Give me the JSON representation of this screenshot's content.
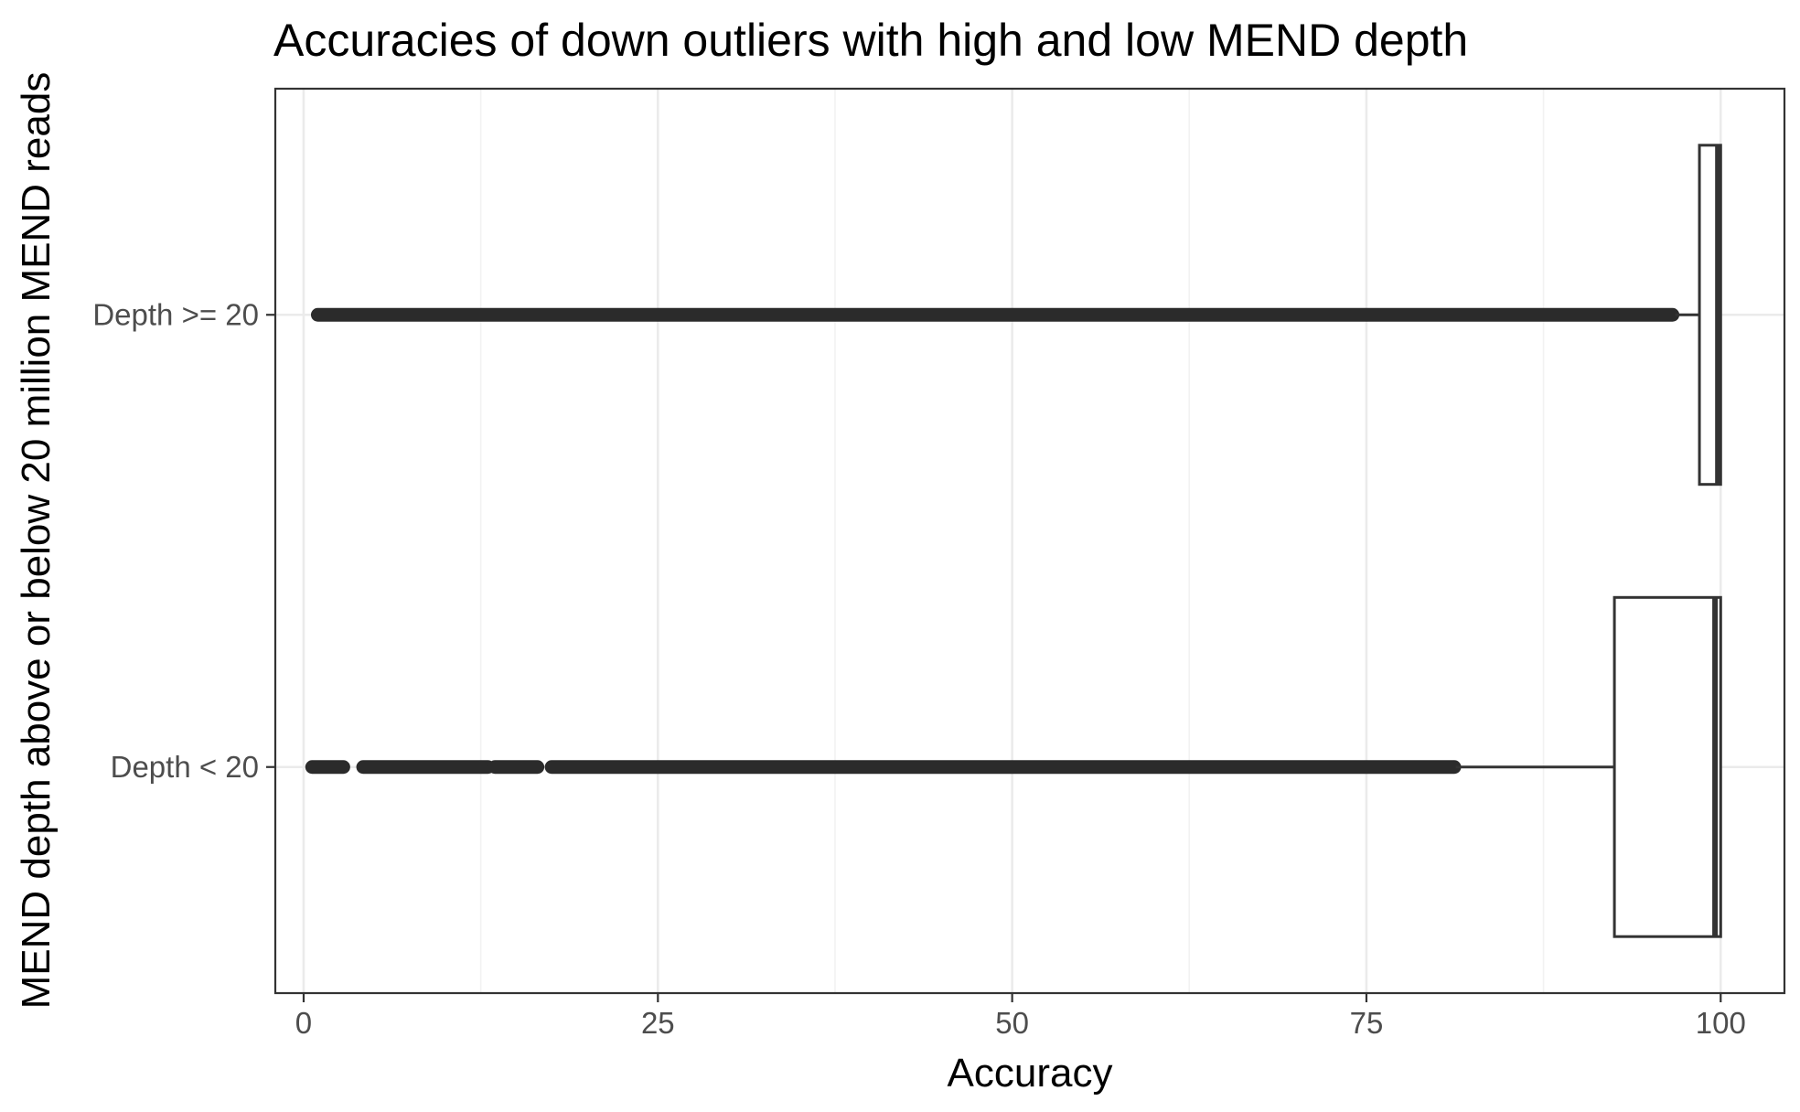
{
  "chart_data": {
    "type": "boxplot",
    "orientation": "horizontal",
    "title": "Accuracies of down outliers with high and low MEND depth",
    "xlabel": "Accuracy",
    "ylabel": "MEND depth above or below 20 million MEND reads",
    "xlim": [
      -2,
      104.5
    ],
    "x_ticks": [
      0,
      25,
      50,
      75,
      100
    ],
    "x_tick_labels": [
      "0",
      "25",
      "50",
      "75",
      "100"
    ],
    "grid": true,
    "categories": [
      "Depth >= 20",
      "Depth < 20"
    ],
    "series": [
      {
        "category": "Depth >= 20",
        "min": 96.8,
        "q1": 98.5,
        "median": 99.8,
        "q3": 100,
        "max": 100,
        "outliers": [
          [
            1,
            96.6,
            0.22
          ],
          [
            6.5,
            8.5,
            0.6
          ],
          [
            9,
            10.5,
            0.7
          ],
          [
            11.3,
            12.6,
            0.7
          ],
          [
            12.8,
            13.8,
            0.7
          ],
          [
            14.0,
            15.0,
            0.7
          ],
          [
            15.8,
            17.5,
            0.6
          ],
          [
            17.8,
            19.0,
            0.7
          ],
          [
            19.5,
            20.6,
            0.6
          ],
          [
            21.3,
            22.6,
            0.7
          ]
        ],
        "outlier_range": [
          1,
          96.6
        ]
      },
      {
        "category": "Depth < 20",
        "min": 81.3,
        "q1": 92.5,
        "median": 99.6,
        "q3": 100,
        "max": 100,
        "outlier_segments": [
          [
            0.6,
            2.8
          ],
          [
            4.2,
            13
          ],
          [
            13.5,
            16.5
          ],
          [
            17.5,
            81.2
          ]
        ],
        "outlier_range": [
          0.6,
          81.2
        ]
      }
    ],
    "colors": {
      "box_fill": "#ffffff",
      "box_stroke": "#333333",
      "outlier": "#2b2b2b",
      "grid_major": "#ebebeb",
      "grid_minor": "#f2f2f2",
      "panel_border": "#333333"
    }
  }
}
